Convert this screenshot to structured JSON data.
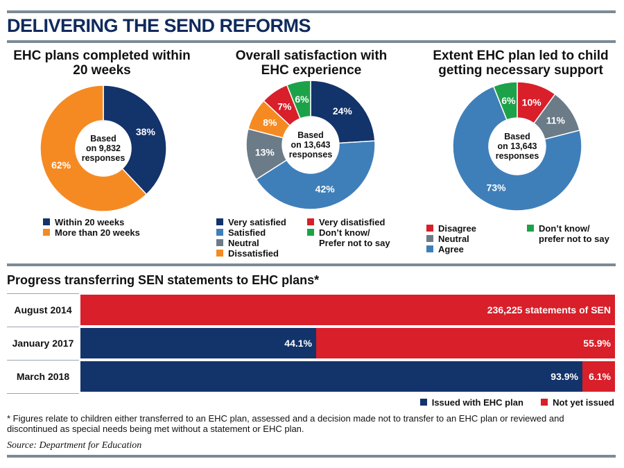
{
  "header": {
    "title": "DELIVERING THE SEND REFORMS"
  },
  "colors": {
    "navy": "#13336b",
    "orange": "#f58a22",
    "blue": "#3f7fb9",
    "grey": "#6b7b87",
    "red": "#d81f2a",
    "green": "#1da249"
  },
  "chart_data": [
    {
      "type": "pie",
      "title": "EHC plans completed within 20 weeks",
      "center_label": [
        "Based",
        "on 9,832",
        "responses"
      ],
      "slices": [
        {
          "label": "Within 20 weeks",
          "value": 38,
          "display": "38%",
          "color": "#13336b"
        },
        {
          "label": "More than 20 weeks",
          "value": 62,
          "display": "62%",
          "color": "#f58a22"
        }
      ]
    },
    {
      "type": "pie",
      "title": "Overall satisfaction with EHC experience",
      "center_label": [
        "Based",
        "on 13,643",
        "responses"
      ],
      "slices": [
        {
          "label": "Very satisfied",
          "value": 24,
          "display": "24%",
          "color": "#13336b"
        },
        {
          "label": "Satisfied",
          "value": 42,
          "display": "42%",
          "color": "#3f7fb9"
        },
        {
          "label": "Neutral",
          "value": 13,
          "display": "13%",
          "color": "#6b7b87"
        },
        {
          "label": "Dissatisfied",
          "value": 8,
          "display": "8%",
          "color": "#f58a22"
        },
        {
          "label": "Very disatisfied",
          "value": 7,
          "display": "7%",
          "color": "#d81f2a"
        },
        {
          "label": "Don’t know/ Prefer not to say",
          "value": 6,
          "display": "6%",
          "color": "#1da249"
        }
      ]
    },
    {
      "type": "pie",
      "title": "Extent EHC plan led to child getting necessary support",
      "center_label": [
        "Based",
        "on 13,643",
        "responses"
      ],
      "slices": [
        {
          "label": "Disagree",
          "value": 10,
          "display": "10%",
          "color": "#d81f2a"
        },
        {
          "label": "Neutral",
          "value": 11,
          "display": "11%",
          "color": "#6b7b87"
        },
        {
          "label": "Agree",
          "value": 73,
          "display": "73%",
          "color": "#3f7fb9"
        },
        {
          "label": "Don’t know/ prefer not to say",
          "value": 6,
          "display": "6%",
          "color": "#1da249"
        }
      ]
    },
    {
      "type": "bar",
      "orientation": "horizontal-stacked",
      "title": "Progress transferring SEN statements to EHC plans*",
      "categories": [
        "August 2014",
        "January 2017",
        "March 2018"
      ],
      "series": [
        {
          "name": "Issued with EHC plan",
          "color": "#13336b",
          "values": [
            0,
            44.1,
            93.9
          ],
          "labels": [
            "",
            "44.1%",
            "93.9%"
          ]
        },
        {
          "name": "Not yet issued",
          "color": "#d81f2a",
          "values": [
            100,
            55.9,
            6.1
          ],
          "labels": [
            "236,225 statements of SEN",
            "55.9%",
            "6.1%"
          ]
        }
      ],
      "legend_position": "bottom-right"
    }
  ],
  "legends": {
    "d1": {
      "col1": [
        "Within 20 weeks",
        "More than 20 weeks"
      ]
    },
    "d2": {
      "col1": [
        "Very satisfied",
        "Satisfied",
        "Neutral",
        "Dissatisfied"
      ],
      "col2a": "Very disatisfied",
      "col2b_line1": "Don’t know/",
      "col2b_line2": "Prefer not to say"
    },
    "d3": {
      "col1": [
        "Disagree",
        "Neutral",
        "Agree"
      ],
      "col2_line1": "Don’t know/",
      "col2_line2": "prefer not to say"
    }
  },
  "footnote": "* Figures relate to children either transferred to an EHC plan, assessed and a decision made not to transfer to an EHC plan or reviewed and discontinued as special needs being met without a statement or EHC plan.",
  "source": "Source: Department for Education"
}
